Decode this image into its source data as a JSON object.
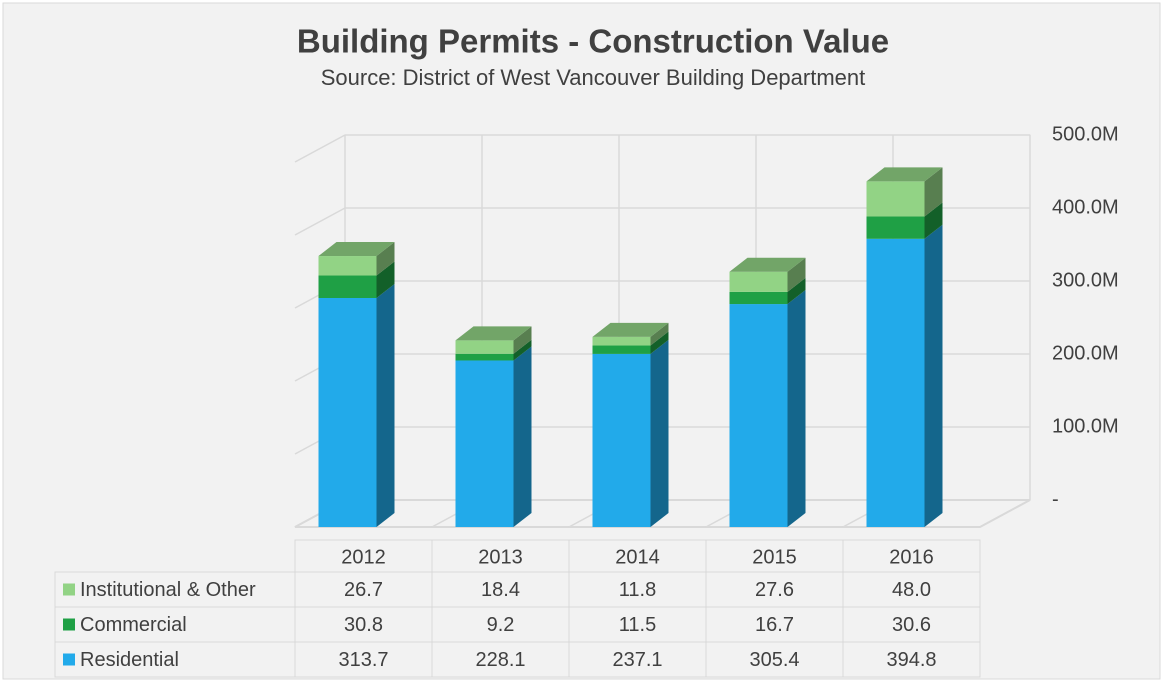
{
  "chart_data": {
    "type": "bar3d_stacked",
    "title": "Building Permits - Construction Value",
    "subtitle": "Source: District of West Vancouver Building Department",
    "categories": [
      "2012",
      "2013",
      "2014",
      "2015",
      "2016"
    ],
    "series": [
      {
        "name": "Residential",
        "color": "#22aaea",
        "values": [
          313.7,
          228.1,
          237.1,
          305.4,
          394.8
        ],
        "value_labels": [
          "313.7",
          "228.1",
          "237.1",
          "305.4",
          "394.8"
        ]
      },
      {
        "name": "Commercial",
        "color": "#1fa045",
        "values": [
          30.8,
          9.2,
          11.5,
          16.7,
          30.6
        ],
        "value_labels": [
          "30.8",
          "9.2",
          "11.5",
          "16.7",
          "30.6"
        ]
      },
      {
        "name": "Institutional & Other",
        "color": "#92d385",
        "values": [
          26.7,
          18.4,
          11.8,
          27.6,
          48.0
        ],
        "value_labels": [
          "26.7",
          "18.4",
          "11.8",
          "27.6",
          "48.0"
        ]
      }
    ],
    "ylim": [
      0,
      500
    ],
    "yticks": [
      {
        "value": 0,
        "label": "-"
      },
      {
        "value": 100,
        "label": "100.0M"
      },
      {
        "value": 200,
        "label": "200.0M"
      },
      {
        "value": 300,
        "label": "300.0M"
      },
      {
        "value": 400,
        "label": "400.0M"
      },
      {
        "value": 500,
        "label": "500.0M"
      }
    ],
    "grid": true
  }
}
